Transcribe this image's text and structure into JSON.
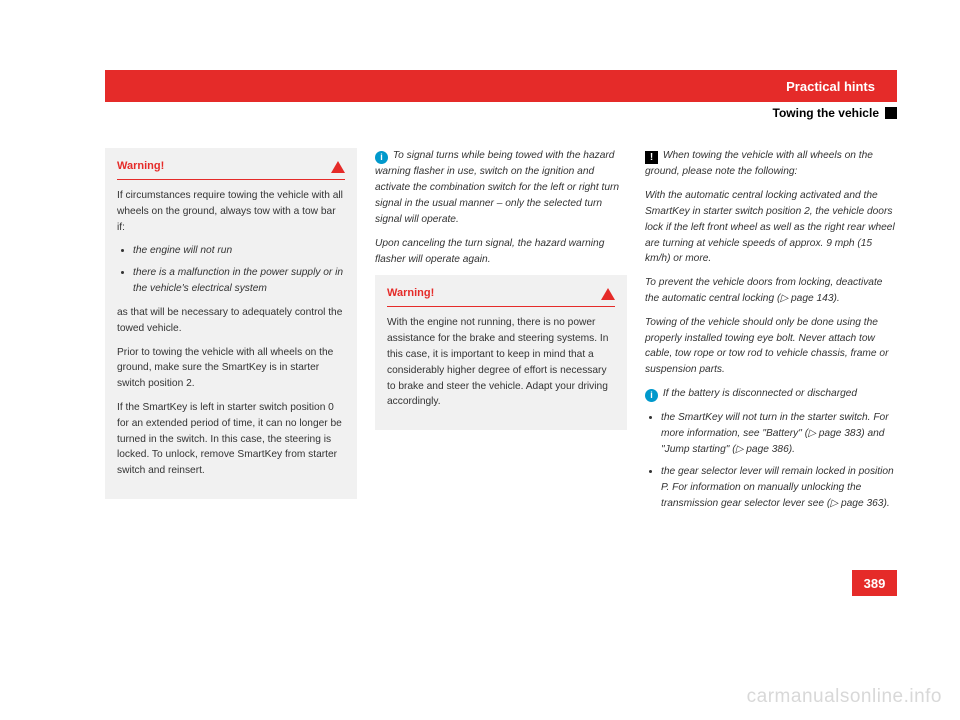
{
  "header": {
    "chapter": "Practical hints",
    "section": "Towing the vehicle"
  },
  "col1": {
    "warning": {
      "title": "Warning!",
      "p1": "If circumstances require towing the vehicle with all wheels on the ground, always tow with a tow bar if:",
      "li1": "the engine will not run",
      "li2": "there is a malfunction in the power supply or in the vehicle's electrical system",
      "p2": "as that will be necessary to adequately control the towed vehicle.",
      "p3": "Prior to towing the vehicle with all wheels on the ground, make sure the SmartKey is in starter switch position 2.",
      "p4": "If the SmartKey is left in starter switch position 0 for an extended period of time, it can no longer be turned in the switch. In this case, the steering is locked. To unlock, remove SmartKey from starter switch and reinsert."
    }
  },
  "col2": {
    "info1": "To signal turns while being towed with the hazard warning flasher in use, switch on the ignition and activate the combination switch for the left or right turn signal in the usual manner – only the selected turn signal will operate.",
    "info2": "Upon canceling the turn signal, the hazard warning flasher will operate again.",
    "warning": {
      "title": "Warning!",
      "p1": "With the engine not running, there is no power assistance for the brake and steering systems. In this case, it is important to keep in mind that a considerably higher degree of effort is necessary to brake and steer the vehicle. Adapt your driving accordingly."
    }
  },
  "col3": {
    "alert1": "When towing the vehicle with all wheels on the ground, please note the following:",
    "p1": "With the automatic central locking activated and the SmartKey in starter switch position 2, the vehicle doors lock if the left front wheel as well as the right rear wheel are turning at vehicle speeds of approx. 9 mph (15 km/h) or more.",
    "p2": "To prevent the vehicle doors from locking, deactivate the automatic central locking (▷ page 143).",
    "p3": "Towing of the vehicle should only be done using the properly installed towing eye bolt. Never attach tow cable, tow rope or tow rod to vehicle chassis, frame or suspension parts.",
    "info2": "If the battery is disconnected or discharged",
    "li1": "the SmartKey will not turn in the starter switch. For more information, see \"Battery\" (▷ page 383) and \"Jump starting\" (▷ page 386).",
    "li2": "the gear selector lever will remain locked in position P. For information on manually unlocking the transmission gear selector lever see (▷ page 363)."
  },
  "pageNumber": "389",
  "watermark": "carmanualsonline.info",
  "colors": {
    "accent": "#e52b29",
    "boxBg": "#f1f1f1",
    "infoIcon": "#0099cc"
  }
}
